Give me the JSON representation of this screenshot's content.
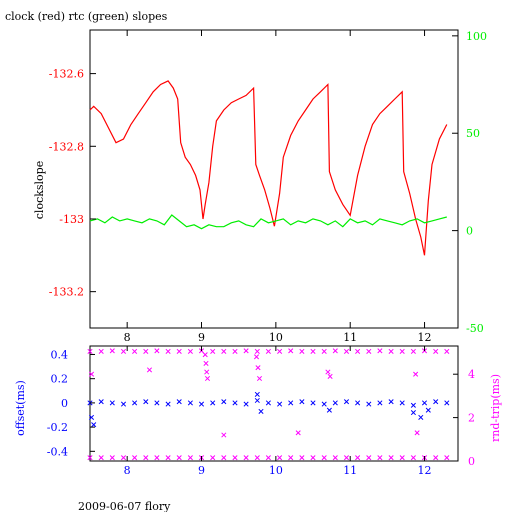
{
  "page": {
    "title": "clock (red) rtc (green) slopes",
    "footer": "2009-06-07 flory"
  },
  "chart_data": [
    {
      "type": "line",
      "title": "clock (red) rtc (green) slopes",
      "xlabel": "",
      "ylabel": "clockslope",
      "y2label": "",
      "xlim": [
        7.5,
        12.45
      ],
      "ylim": [
        -133.3,
        -132.48
      ],
      "y2lim": [
        -50,
        103
      ],
      "x_ticks": [
        "8",
        "9",
        "10",
        "11",
        "12"
      ],
      "y_ticks": [
        "-132.6",
        "-132.8",
        "-133",
        "-133.2"
      ],
      "y2_ticks": [
        "100",
        "50",
        "0",
        "-50"
      ],
      "grid": false,
      "colors": {
        "clock": "#ff0000",
        "rtc": "#00ee00",
        "axis": "#000000"
      },
      "series": [
        {
          "name": "clock",
          "axis": "left",
          "color": "#ff0000",
          "x": [
            7.5,
            7.55,
            7.65,
            7.75,
            7.85,
            7.95,
            8.05,
            8.15,
            8.25,
            8.35,
            8.45,
            8.55,
            8.62,
            8.68,
            8.72,
            8.78,
            8.85,
            8.92,
            8.98,
            9.02,
            9.05,
            9.1,
            9.15,
            9.2,
            9.3,
            9.4,
            9.5,
            9.6,
            9.7,
            9.73,
            9.78,
            9.85,
            9.92,
            9.98,
            10.05,
            10.1,
            10.2,
            10.3,
            10.4,
            10.5,
            10.6,
            10.7,
            10.72,
            10.8,
            10.9,
            11.0,
            11.1,
            11.2,
            11.3,
            11.4,
            11.5,
            11.6,
            11.7,
            11.72,
            11.8,
            11.88,
            11.95,
            12.0,
            12.05,
            12.1,
            12.2,
            12.3
          ],
          "y": [
            -132.7,
            -132.69,
            -132.71,
            -132.75,
            -132.79,
            -132.78,
            -132.74,
            -132.71,
            -132.68,
            -132.65,
            -132.63,
            -132.62,
            -132.64,
            -132.67,
            -132.79,
            -132.83,
            -132.85,
            -132.88,
            -132.92,
            -133.0,
            -132.96,
            -132.9,
            -132.8,
            -132.73,
            -132.7,
            -132.68,
            -132.67,
            -132.66,
            -132.64,
            -132.85,
            -132.88,
            -132.92,
            -132.97,
            -133.02,
            -132.93,
            -132.83,
            -132.77,
            -132.73,
            -132.7,
            -132.67,
            -132.65,
            -132.63,
            -132.87,
            -132.92,
            -132.96,
            -132.99,
            -132.88,
            -132.8,
            -132.74,
            -132.71,
            -132.69,
            -132.67,
            -132.65,
            -132.87,
            -132.93,
            -133.0,
            -133.05,
            -133.1,
            -132.95,
            -132.85,
            -132.78,
            -132.74
          ]
        },
        {
          "name": "rtc",
          "axis": "right",
          "color": "#00ee00",
          "x": [
            7.5,
            7.6,
            7.7,
            7.8,
            7.9,
            8.0,
            8.1,
            8.2,
            8.3,
            8.4,
            8.5,
            8.6,
            8.7,
            8.8,
            8.9,
            9.0,
            9.1,
            9.2,
            9.3,
            9.4,
            9.5,
            9.6,
            9.7,
            9.8,
            9.9,
            10.0,
            10.1,
            10.2,
            10.3,
            10.4,
            10.5,
            10.6,
            10.7,
            10.8,
            10.9,
            11.0,
            11.1,
            11.2,
            11.3,
            11.4,
            11.5,
            11.6,
            11.7,
            11.8,
            11.9,
            12.0,
            12.1,
            12.2,
            12.3
          ],
          "y": [
            5,
            6,
            4,
            7,
            5,
            6,
            5,
            4,
            6,
            5,
            3,
            8,
            5,
            2,
            3,
            1,
            3,
            2,
            2,
            4,
            5,
            3,
            2,
            6,
            4,
            5,
            6,
            3,
            5,
            4,
            6,
            5,
            3,
            5,
            2,
            6,
            4,
            5,
            3,
            6,
            5,
            4,
            3,
            5,
            6,
            4,
            5,
            6,
            7
          ]
        }
      ]
    },
    {
      "type": "scatter",
      "xlabel": "",
      "ylabel": "offset(ms)",
      "y2label": "rnd-trip(ms)",
      "xlim": [
        7.5,
        12.45
      ],
      "ylim": [
        -0.48,
        0.47
      ],
      "y2lim": [
        0,
        5.3
      ],
      "x_ticks": [
        "8",
        "9",
        "10",
        "11",
        "12"
      ],
      "y_ticks": [
        "0.4",
        "0.2",
        "0",
        "-0.2",
        "-0.4"
      ],
      "y2_ticks": [
        "4",
        "2",
        "0"
      ],
      "colors": {
        "offset": "#0000ff",
        "rnd_trip": "#ff00ff"
      },
      "series": [
        {
          "name": "offset",
          "axis": "left",
          "marker": "x",
          "color": "#0000ff",
          "x": [
            7.5,
            7.65,
            7.8,
            7.95,
            8.1,
            8.25,
            8.4,
            8.55,
            8.7,
            8.85,
            9.0,
            9.15,
            9.3,
            9.45,
            9.6,
            9.75,
            9.9,
            10.05,
            10.2,
            10.35,
            10.5,
            10.65,
            10.8,
            10.95,
            11.1,
            11.25,
            11.4,
            11.55,
            11.7,
            11.85,
            12.0,
            12.15,
            12.3,
            7.52,
            7.55,
            9.75,
            9.8,
            10.72,
            11.85,
            11.95,
            12.05
          ],
          "y": [
            0.0,
            0.01,
            0.0,
            -0.01,
            0.0,
            0.01,
            0.0,
            -0.01,
            0.01,
            0.0,
            -0.01,
            0.0,
            0.01,
            0.0,
            -0.01,
            0.02,
            0.0,
            -0.01,
            0.0,
            0.01,
            0.0,
            -0.01,
            0.0,
            0.01,
            0.0,
            -0.01,
            0.0,
            0.01,
            0.0,
            -0.02,
            0.0,
            0.01,
            0.0,
            -0.12,
            -0.18,
            0.07,
            -0.07,
            -0.06,
            -0.08,
            -0.12,
            -0.06
          ]
        },
        {
          "name": "rnd-trip",
          "axis": "right",
          "marker": "x",
          "color": "#ff00ff",
          "x": [
            7.5,
            7.65,
            7.8,
            7.95,
            8.1,
            8.25,
            8.4,
            8.55,
            8.7,
            8.85,
            9.0,
            9.15,
            9.3,
            9.45,
            9.6,
            9.75,
            9.9,
            10.05,
            10.2,
            10.35,
            10.5,
            10.65,
            10.8,
            10.95,
            11.1,
            11.25,
            11.4,
            11.55,
            11.7,
            11.85,
            12.0,
            12.15,
            12.3,
            7.5,
            7.65,
            7.8,
            7.95,
            8.1,
            8.25,
            8.4,
            8.55,
            8.7,
            8.85,
            9.0,
            9.15,
            9.3,
            9.45,
            9.6,
            9.75,
            9.9,
            10.05,
            10.2,
            10.35,
            10.5,
            10.65,
            10.8,
            10.95,
            11.1,
            11.25,
            11.4,
            11.55,
            11.7,
            11.85,
            12.0,
            12.15,
            12.3,
            9.05,
            9.06,
            9.07,
            9.08,
            9.74,
            9.76,
            9.78,
            7.52,
            8.3,
            9.3,
            10.3,
            10.7,
            10.73,
            11.88,
            11.9
          ],
          "y": [
            0.15,
            0.15,
            0.15,
            0.15,
            0.15,
            0.15,
            0.15,
            0.15,
            0.15,
            0.15,
            0.15,
            0.15,
            0.15,
            0.15,
            0.15,
            0.15,
            0.15,
            0.15,
            0.15,
            0.15,
            0.15,
            0.15,
            0.15,
            0.15,
            0.15,
            0.15,
            0.15,
            0.15,
            0.15,
            0.15,
            0.15,
            0.15,
            0.15,
            5.05,
            5.05,
            5.08,
            5.05,
            5.05,
            5.05,
            5.08,
            5.05,
            5.05,
            5.05,
            5.08,
            5.05,
            5.05,
            5.05,
            5.08,
            5.05,
            5.05,
            5.05,
            5.08,
            5.05,
            5.05,
            5.05,
            5.08,
            5.05,
            5.05,
            5.05,
            5.08,
            5.05,
            5.05,
            5.05,
            5.08,
            5.05,
            5.05,
            4.9,
            4.5,
            4.1,
            3.8,
            4.8,
            4.3,
            3.8,
            4.0,
            4.2,
            1.2,
            1.3,
            4.1,
            3.9,
            4.0,
            1.3
          ]
        }
      ]
    }
  ]
}
